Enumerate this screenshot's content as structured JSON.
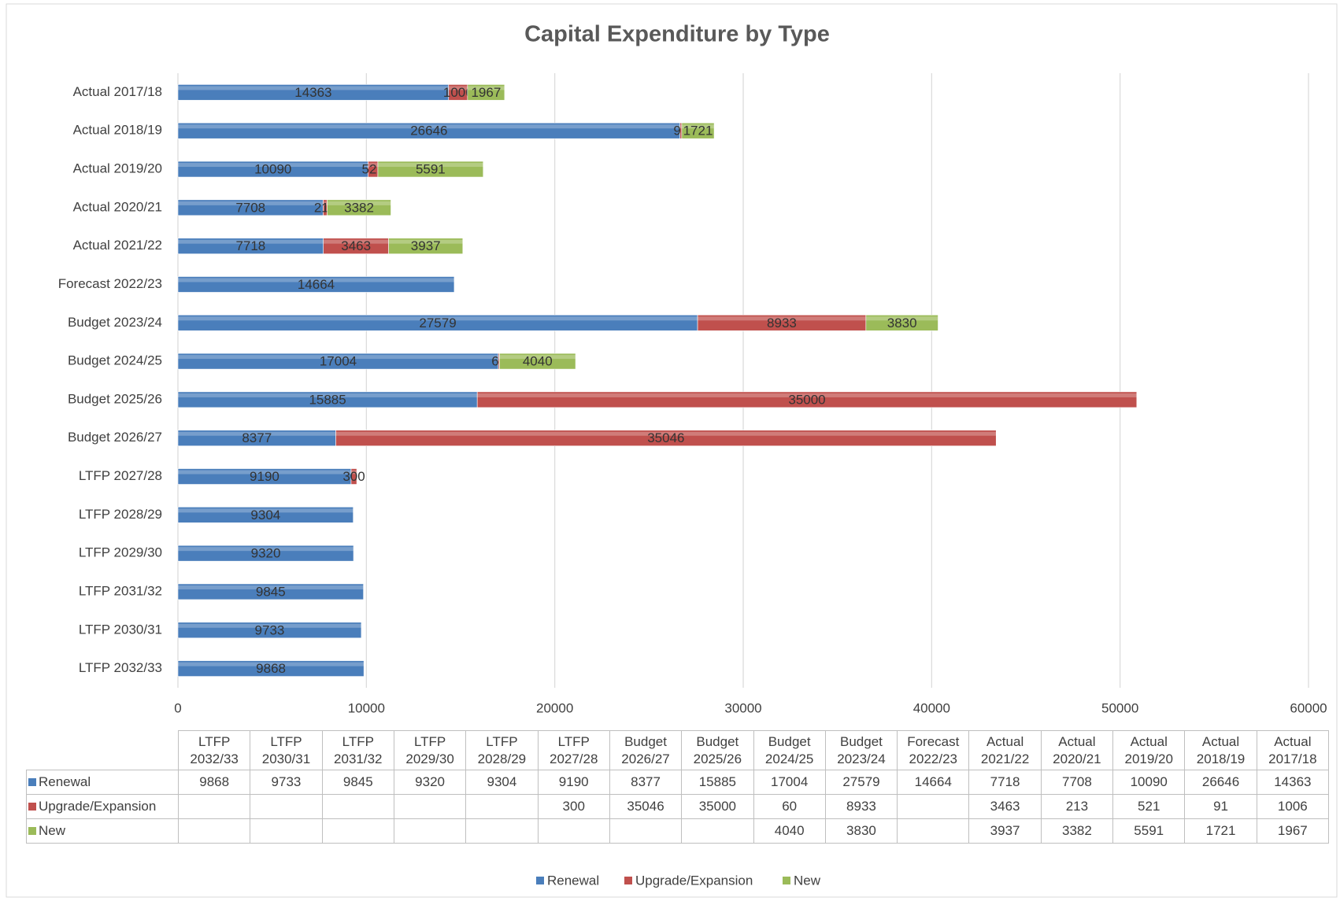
{
  "chart_data": {
    "type": "stacked_bar_horizontal",
    "title": "Capital Expenditure by Type",
    "categories": [
      "LTFP 2032/33",
      "LTFP 2030/31",
      "LTFP 2031/32",
      "LTFP 2029/30",
      "LTFP 2028/29",
      "LTFP 2027/28",
      "Budget 2026/27",
      "Budget 2025/26",
      "Budget 2024/25",
      "Budget 2023/24",
      "Forecast 2022/23",
      "Actual 2021/22",
      "Actual 2020/21",
      "Actual 2019/20",
      "Actual 2018/19",
      "Actual 2017/18"
    ],
    "series": [
      {
        "name": "Renewal",
        "color": "#4a7ebb",
        "values": [
          9868,
          9733,
          9845,
          9320,
          9304,
          9190,
          8377,
          15885,
          17004,
          27579,
          14664,
          7718,
          7708,
          10090,
          26646,
          14363
        ]
      },
      {
        "name": "Upgrade/Expansion",
        "color": "#c0504d",
        "values": [
          null,
          null,
          null,
          null,
          null,
          300,
          35046,
          35000,
          60,
          8933,
          null,
          3463,
          213,
          521,
          91,
          1006
        ]
      },
      {
        "name": "New",
        "color": "#9bbb59",
        "values": [
          null,
          null,
          null,
          null,
          null,
          null,
          null,
          null,
          4040,
          3830,
          null,
          3937,
          3382,
          5591,
          1721,
          1967
        ]
      }
    ],
    "xlim": [
      0,
      60000
    ],
    "xticks": [
      0,
      10000,
      20000,
      30000,
      40000,
      50000,
      60000
    ],
    "grid": true,
    "legend": "bottom"
  }
}
